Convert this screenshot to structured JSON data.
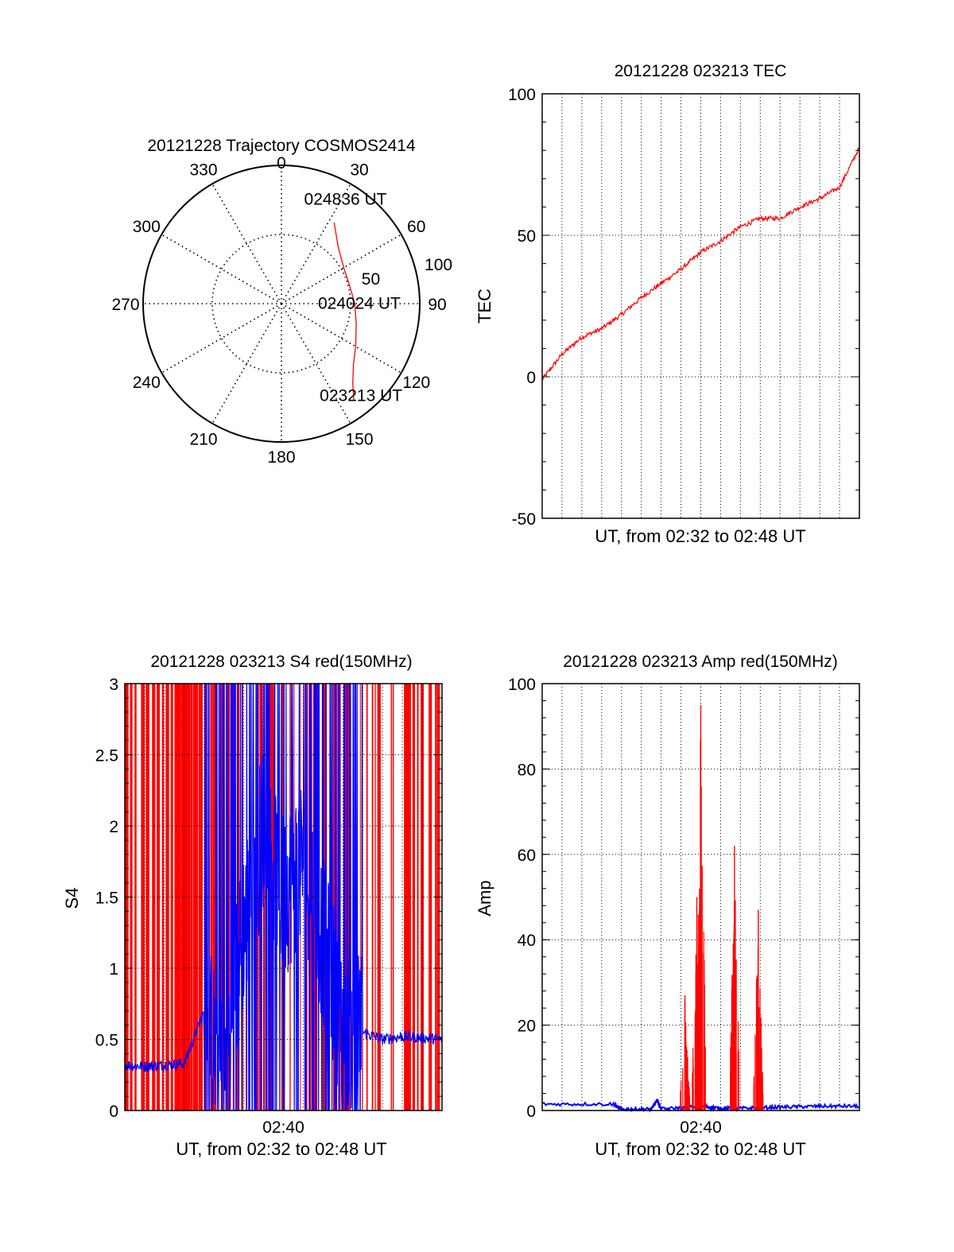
{
  "chart_data": [
    {
      "type": "polar",
      "title": "20121228 Trajectory COSMOS2414",
      "azimuth_labels": [
        "0",
        "30",
        "60",
        "90",
        "120",
        "150",
        "180",
        "210",
        "240",
        "270",
        "300",
        "330"
      ],
      "radial_labels": [
        "50",
        "100"
      ],
      "rlim": [
        0,
        100
      ],
      "grid": true,
      "series": [
        {
          "color": "#ff0000",
          "points": [
            {
              "az": 33,
              "r": 70
            },
            {
              "az": 45,
              "r": 58
            },
            {
              "az": 60,
              "r": 52
            },
            {
              "az": 75,
              "r": 51
            },
            {
              "az": 90,
              "r": 53
            },
            {
              "az": 105,
              "r": 56
            },
            {
              "az": 120,
              "r": 62
            },
            {
              "az": 130,
              "r": 68
            },
            {
              "az": 138,
              "r": 77
            },
            {
              "az": 143,
              "r": 87
            }
          ]
        }
      ],
      "annotations": [
        {
          "text": "024836 UT",
          "az": 30,
          "r": 88
        },
        {
          "text": "024024 UT",
          "az": 89,
          "r": 54
        },
        {
          "text": "023213 UT",
          "az": 140,
          "r": 86
        }
      ]
    },
    {
      "type": "line",
      "title": "20121228 023213 TEC",
      "xlabel": "UT, from 02:32 to 02:48 UT",
      "ylabel": "TEC",
      "xlim": [
        "02:32",
        "02:48"
      ],
      "ylim": [
        -50,
        100
      ],
      "yticks": [
        "-50",
        "0",
        "50",
        "100"
      ],
      "grid": true,
      "series": [
        {
          "color": "#ff0000",
          "x": [
            "02:32",
            "02:33",
            "02:34",
            "02:35",
            "02:36",
            "02:37",
            "02:38",
            "02:39",
            "02:40",
            "02:41",
            "02:42",
            "02:43",
            "02:44",
            "02:45",
            "02:46",
            "02:47",
            "02:48"
          ],
          "values": [
            -1,
            8,
            14,
            17,
            22,
            28,
            33,
            38,
            44,
            48,
            53,
            56,
            56,
            60,
            63,
            67,
            81
          ]
        }
      ]
    },
    {
      "type": "line",
      "title": "20121228 023213 S4 red(150MHz)",
      "xlabel": "UT, from 02:32 to 02:48 UT",
      "ylabel": "S4",
      "xlim": [
        "02:32",
        "02:48"
      ],
      "ylim": [
        0,
        3
      ],
      "yticks": [
        "0",
        "0.5",
        "1",
        "1.5",
        "2",
        "2.5",
        "3"
      ],
      "xticks": [
        "02:40"
      ],
      "grid": true,
      "series": [
        {
          "color": "#ff0000",
          "description_values": {
            "02:32-02:36": "saturated",
            "02:44-02:48": "saturated"
          }
        },
        {
          "color": "#0000ff",
          "x": [
            "02:32",
            "02:33",
            "02:34",
            "02:35",
            "02:36",
            "02:37",
            "02:38",
            "02:39",
            "02:40",
            "02:41",
            "02:42",
            "02:43",
            "02:44",
            "02:45",
            "02:46",
            "02:47",
            "02:48"
          ],
          "values": [
            0.32,
            0.31,
            0.32,
            0.33,
            0.7,
            0.2,
            1.3,
            2.0,
            1.5,
            1.8,
            1.2,
            0.6,
            0.55,
            0.5,
            0.52,
            0.51,
            0.5
          ]
        }
      ]
    },
    {
      "type": "line",
      "title": "20121228 023213 Amp red(150MHz)",
      "xlabel": "UT, from 02:32 to 02:48 UT",
      "ylabel": "Amp",
      "xlim": [
        "02:32",
        "02:48"
      ],
      "ylim": [
        0,
        100
      ],
      "yticks": [
        "0",
        "20",
        "40",
        "60",
        "80",
        "100"
      ],
      "xticks": [
        "02:40"
      ],
      "grid": true,
      "series": [
        {
          "color": "#ff0000",
          "x": [
            "02:39.0",
            "02:39.2",
            "02:39.5",
            "02:39.8",
            "02:40.0",
            "02:40.5",
            "02:41.5",
            "02:41.7",
            "02:42.0",
            "02:42.7",
            "02:42.9",
            "02:43.2"
          ],
          "values": [
            0,
            27,
            0,
            50,
            95,
            0,
            0,
            62,
            0,
            0,
            47,
            0
          ]
        },
        {
          "color": "#0000ff",
          "x": [
            "02:32",
            "02:35.6",
            "02:36",
            "02:37.5",
            "02:37.8",
            "02:38",
            "02:40",
            "02:41",
            "02:42",
            "02:44",
            "02:46",
            "02:48"
          ],
          "values": [
            1.5,
            1.5,
            0.3,
            0.3,
            2.5,
            0.3,
            1,
            0.5,
            0.5,
            0.8,
            1,
            1
          ]
        }
      ]
    }
  ]
}
